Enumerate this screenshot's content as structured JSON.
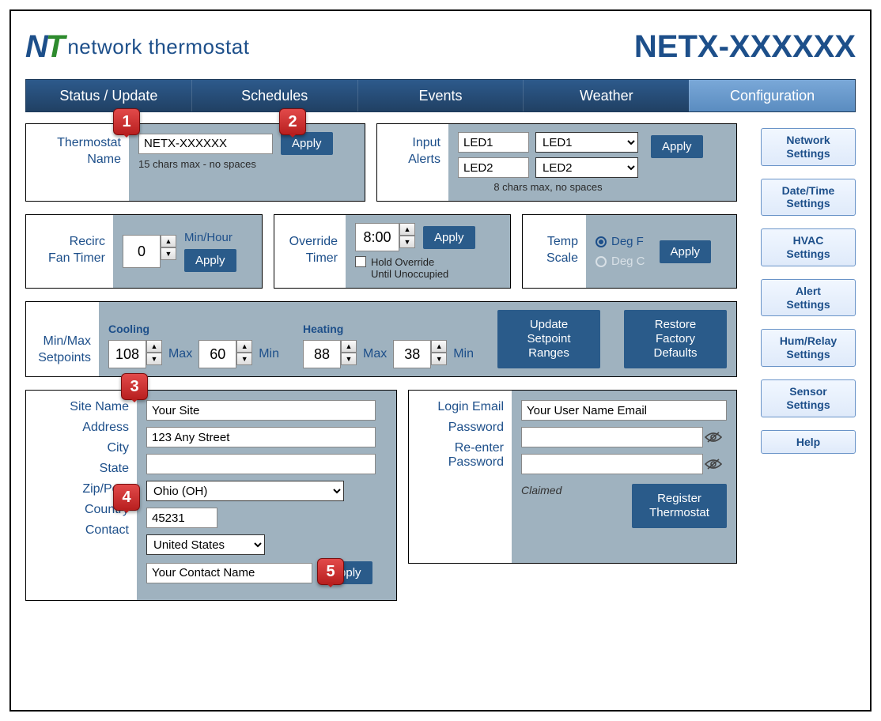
{
  "header": {
    "logo_text": "network thermostat",
    "device_title": "NETX-XXXXXX"
  },
  "nav": {
    "items": [
      "Status / Update",
      "Schedules",
      "Events",
      "Weather",
      "Configuration"
    ],
    "active_index": 4
  },
  "right_buttons": [
    "Network Settings",
    "Date/Time Settings",
    "HVAC Settings",
    "Alert Settings",
    "Hum/Relay Settings",
    "Sensor Settings",
    "Help"
  ],
  "callouts": [
    "1",
    "2",
    "3",
    "4",
    "5"
  ],
  "thermostat_name": {
    "label": "Thermostat\nName",
    "value": "NETX-XXXXXX",
    "hint": "15 chars max - no spaces",
    "apply": "Apply"
  },
  "input_alerts": {
    "label": "Input\nAlerts",
    "led1_text": "LED1",
    "led1_select": "LED1",
    "led2_text": "LED2",
    "led2_select": "LED2",
    "hint": "8 chars max, no spaces",
    "apply": "Apply"
  },
  "recirc": {
    "label": "Recirc\nFan Timer",
    "value": "0",
    "unit": "Min/Hour",
    "apply": "Apply"
  },
  "override": {
    "label": "Override\nTimer",
    "value": "8:00",
    "hold_label": "Hold Override\nUntil Unoccupied",
    "apply": "Apply"
  },
  "temp_scale": {
    "label": "Temp\nScale",
    "deg_f": "Deg F",
    "deg_c": "Deg C",
    "apply": "Apply"
  },
  "setpoints": {
    "label": "Min/Max\nSetpoints",
    "cooling_label": "Cooling",
    "heating_label": "Heating",
    "cool_max": "108",
    "cool_max_lbl": "Max",
    "cool_min": "60",
    "cool_min_lbl": "Min",
    "heat_max": "88",
    "heat_max_lbl": "Max",
    "heat_min": "38",
    "heat_min_lbl": "Min",
    "update_btn": "Update Setpoint Ranges",
    "restore_btn": "Restore Factory Defaults"
  },
  "site": {
    "site_name_lbl": "Site Name",
    "site_name": "Your Site",
    "address_lbl": "Address",
    "address": "123 Any Street",
    "city_lbl": "City",
    "city": "",
    "state_lbl": "State",
    "state": "Ohio (OH)",
    "zip_lbl": "Zip/Post",
    "zip": "45231",
    "country_lbl": "Country",
    "country": "United States",
    "contact_lbl": "Contact",
    "contact": "Your Contact Name",
    "apply": "Apply"
  },
  "login": {
    "email_lbl": "Login Email",
    "email": "Your User Name Email",
    "password_lbl": "Password",
    "password": "",
    "reenter_lbl": "Re-enter\nPassword",
    "reenter": "",
    "claimed": "Claimed",
    "register_btn": "Register Thermostat"
  }
}
